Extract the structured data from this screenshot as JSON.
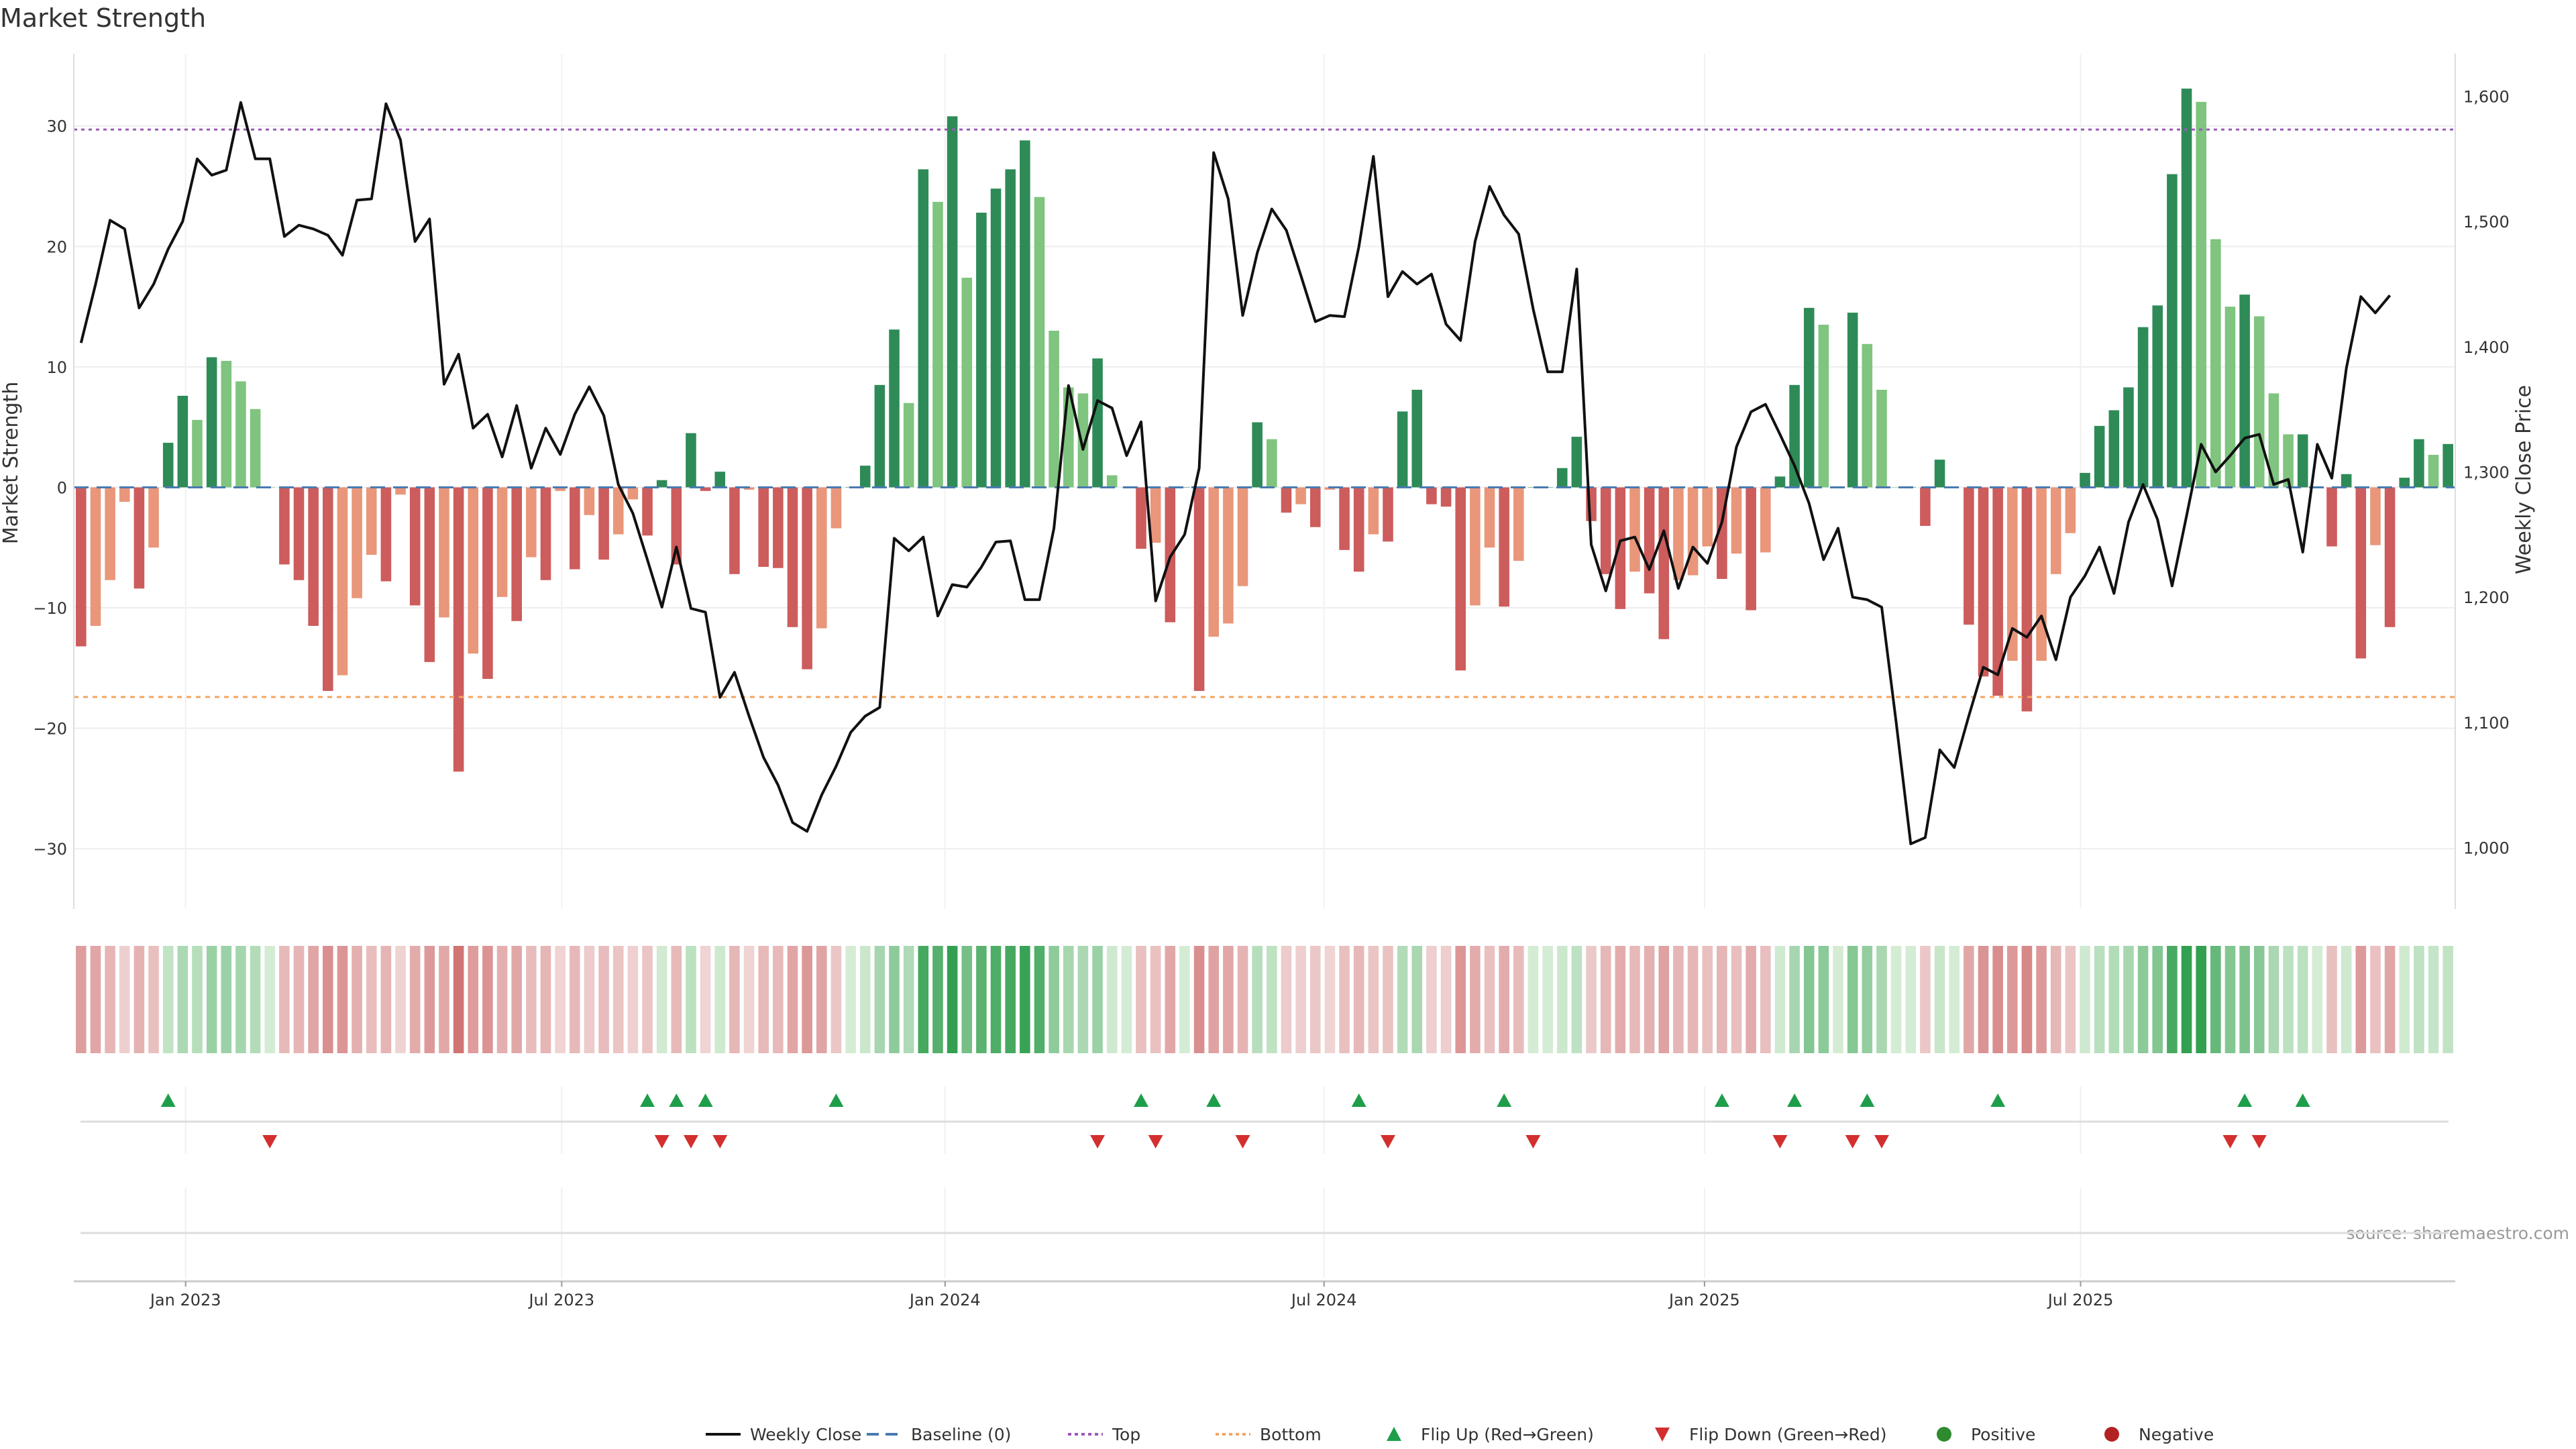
{
  "chart_data": {
    "type": "bar",
    "title": "Market Strength",
    "ylabel_left": "Market Strength",
    "ylabel_right": "Weekly Close Price",
    "source": "source: sharemaestro.com",
    "ylim_left": [
      -35,
      36
    ],
    "yticks_left": [
      "30",
      "20",
      "10",
      "0",
      "−10",
      "−20",
      "−30"
    ],
    "yticks_left_values": [
      30,
      20,
      10,
      0,
      -10,
      -20,
      -30
    ],
    "ylim_right": [
      951,
      1634
    ],
    "yticks_right": [
      "1,600",
      "1,500",
      "1,400",
      "1,300",
      "1,200",
      "1,100",
      "1,000"
    ],
    "yticks_right_values": [
      1600,
      1500,
      1400,
      1300,
      1200,
      1100,
      1000
    ],
    "x_ticks": [
      {
        "label": "Jan 2023",
        "week": 7.7
      },
      {
        "label": "Jul 2023",
        "week": 33.6
      },
      {
        "label": "Jan 2024",
        "week": 60.0
      },
      {
        "label": "Jul 2024",
        "week": 86.1
      },
      {
        "label": "Jan 2025",
        "week": 112.3
      },
      {
        "label": "Jul 2025",
        "week": 138.2
      }
    ],
    "top_level": 29.7,
    "bottom_level": -17.4,
    "strength": [
      -13.2,
      -11.5,
      -7.7,
      -1.2,
      -8.4,
      -5.0,
      3.7,
      7.6,
      5.6,
      10.8,
      10.5,
      8.8,
      6.5,
      0,
      -6.4,
      -7.7,
      -11.5,
      -16.9,
      -15.6,
      -9.2,
      -5.6,
      -7.8,
      -0.6,
      -9.8,
      -14.5,
      -10.8,
      -23.6,
      -13.8,
      -15.9,
      -9.1,
      -11.1,
      -5.8,
      -7.7,
      -0.3,
      -6.8,
      -2.3,
      -6.0,
      -3.9,
      -1.0,
      -4.0,
      0.6,
      -6.4,
      4.5,
      -0.3,
      1.3,
      -7.2,
      -0.2,
      -6.6,
      -6.7,
      -11.6,
      -15.1,
      -11.7,
      -3.4,
      0,
      1.8,
      8.5,
      13.1,
      7.0,
      26.4,
      23.7,
      30.8,
      17.4,
      22.8,
      24.8,
      26.4,
      28.8,
      24.1,
      13.0,
      8.3,
      7.8,
      10.7,
      1.0,
      0,
      -5.1,
      -4.6,
      -11.2,
      0,
      -16.9,
      -12.4,
      -11.3,
      -8.2,
      5.4,
      4.0,
      -2.1,
      -1.4,
      -3.3,
      -0.2,
      -5.2,
      -7.0,
      -3.9,
      -4.5,
      6.3,
      8.1,
      -1.4,
      -1.6,
      -15.2,
      -9.8,
      -5.0,
      -9.9,
      -6.1,
      0,
      0,
      1.6,
      4.2,
      -2.8,
      -7.2,
      -10.1,
      -7.0,
      -8.8,
      -12.6,
      -7.7,
      -7.3,
      -4.9,
      -7.6,
      -5.5,
      -10.2,
      -5.4,
      0.9,
      8.5,
      14.9,
      13.5,
      0,
      14.5,
      11.9,
      8.1,
      0,
      0,
      -3.2,
      2.3,
      0,
      -11.4,
      -15.7,
      -17.3,
      -14.4,
      -18.6,
      -14.4,
      -7.2,
      -3.8,
      1.2,
      5.1,
      6.4,
      8.3,
      13.3,
      15.1,
      26.0,
      33.1,
      32.0,
      20.6,
      15.0,
      16.0,
      14.2,
      7.8,
      4.4,
      4.4,
      0,
      -4.9,
      1.1,
      -14.2,
      -4.8,
      -11.6,
      0.8,
      4.0,
      2.7,
      3.6
    ],
    "price": [
      1403,
      1450,
      1501,
      1494,
      1431,
      1450,
      1478,
      1500,
      1550,
      1537,
      1541,
      1595,
      1550,
      1550,
      1488,
      1497,
      1494,
      1489,
      1473,
      1517,
      1518,
      1594,
      1565,
      1484,
      1502,
      1370,
      1394,
      1335,
      1346,
      1312,
      1353,
      1303,
      1335,
      1314,
      1346,
      1368,
      1345,
      1290,
      1267,
      1230,
      1192,
      1240,
      1191,
      1188,
      1120,
      1140,
      1105,
      1072,
      1050,
      1020,
      1013,
      1042,
      1065,
      1092,
      1105,
      1112,
      1247,
      1237,
      1248,
      1185,
      1210,
      1208,
      1224,
      1244,
      1245,
      1198,
      1198,
      1255,
      1369,
      1318,
      1357,
      1351,
      1313,
      1340,
      1197,
      1232,
      1250,
      1303,
      1555,
      1518,
      1425,
      1475,
      1510,
      1493,
      1457,
      1420,
      1425,
      1424,
      1480,
      1552,
      1440,
      1460,
      1450,
      1458,
      1418,
      1405,
      1484,
      1528,
      1505,
      1490,
      1430,
      1380,
      1380,
      1462,
      1242,
      1205,
      1245,
      1248,
      1222,
      1253,
      1207,
      1240,
      1227,
      1260,
      1320,
      1348,
      1354,
      1330,
      1305,
      1275,
      1230,
      1255,
      1200,
      1198,
      1192,
      1100,
      1003,
      1008,
      1078,
      1064,
      1105,
      1144,
      1138,
      1175,
      1168,
      1185,
      1150,
      1200,
      1217,
      1240,
      1203,
      1260,
      1290,
      1262,
      1209,
      1265,
      1322,
      1300,
      1313,
      1327,
      1330,
      1290,
      1294,
      1236,
      1322,
      1295,
      1383,
      1440,
      1427,
      1441
    ],
    "strength_colors": {
      "green_dark": "#2e8b57",
      "green_light": "#7fc47f",
      "red_dark": "#cd5c5c",
      "red_light": "#e9967a",
      "baseline": "#4a7ab0",
      "top_line": "#9b59b6",
      "bottom_line": "#f4a460",
      "price_line": "#111111"
    },
    "flip_up_weeks": [
      6,
      39,
      41,
      43,
      52,
      73,
      78,
      88,
      98,
      113,
      118,
      123,
      132,
      149,
      153
    ],
    "flip_down_weeks": [
      13,
      40,
      42,
      44,
      70,
      74,
      80,
      90,
      100,
      117,
      122,
      124,
      148,
      150
    ],
    "legend": [
      {
        "label": "Weekly Close",
        "marker": "line",
        "color": "#111111"
      },
      {
        "label": "Baseline (0)",
        "marker": "dash",
        "color": "#4a7ab0"
      },
      {
        "label": "Top",
        "marker": "dot",
        "color": "#9b59b6"
      },
      {
        "label": "Bottom",
        "marker": "dot",
        "color": "#f4a460"
      },
      {
        "label": "Flip Up (Red→Green)",
        "marker": "triangle-up",
        "color": "#1e9e4a"
      },
      {
        "label": "Flip Down (Green→Red)",
        "marker": "triangle-down",
        "color": "#d32f2f"
      },
      {
        "label": "Positive",
        "marker": "circle",
        "color": "#2e8b2e"
      },
      {
        "label": "Negative",
        "marker": "circle",
        "color": "#b22222"
      }
    ]
  }
}
